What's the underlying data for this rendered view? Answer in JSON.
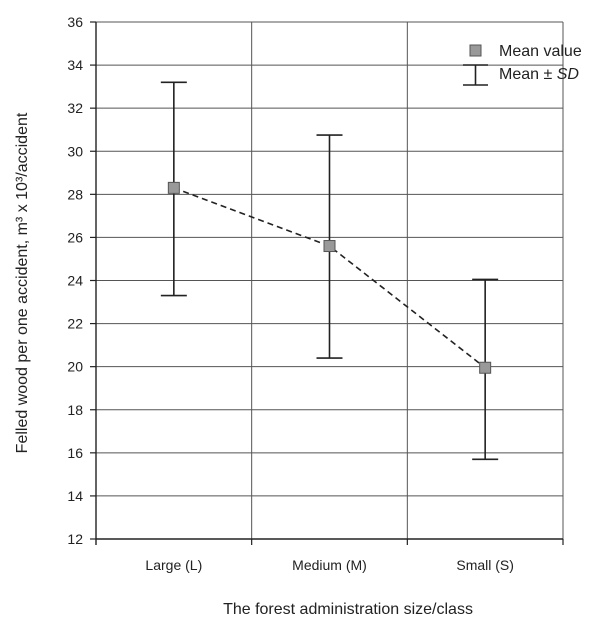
{
  "chart_data": {
    "type": "scatter",
    "categories": [
      "Large (L)",
      "Medium (M)",
      "Small (S)"
    ],
    "series": [
      {
        "name": "Mean value",
        "values": [
          28.3,
          25.6,
          19.95
        ]
      }
    ],
    "error_bars": {
      "name": "Mean ± SD",
      "lower": [
        23.3,
        20.4,
        15.7
      ],
      "upper": [
        33.2,
        30.75,
        24.05
      ]
    },
    "xlabel": "The forest administration size/class",
    "ylabel": "Felled wood per one accident, m³ x 10³/accident",
    "ylim": [
      12,
      36
    ],
    "yticks": [
      12,
      14,
      16,
      18,
      20,
      22,
      24,
      26,
      28,
      30,
      32,
      34,
      36
    ],
    "grid": true,
    "legend_position": "top-right",
    "line_style": "dashed"
  },
  "legend": {
    "mean_label": "Mean value",
    "sd_prefix": "Mean ± ",
    "sd_symbol": "SD"
  },
  "colors": {
    "marker_fill": "#999999",
    "marker_stroke": "#555555",
    "line": "#222222",
    "grid": "#555555"
  }
}
